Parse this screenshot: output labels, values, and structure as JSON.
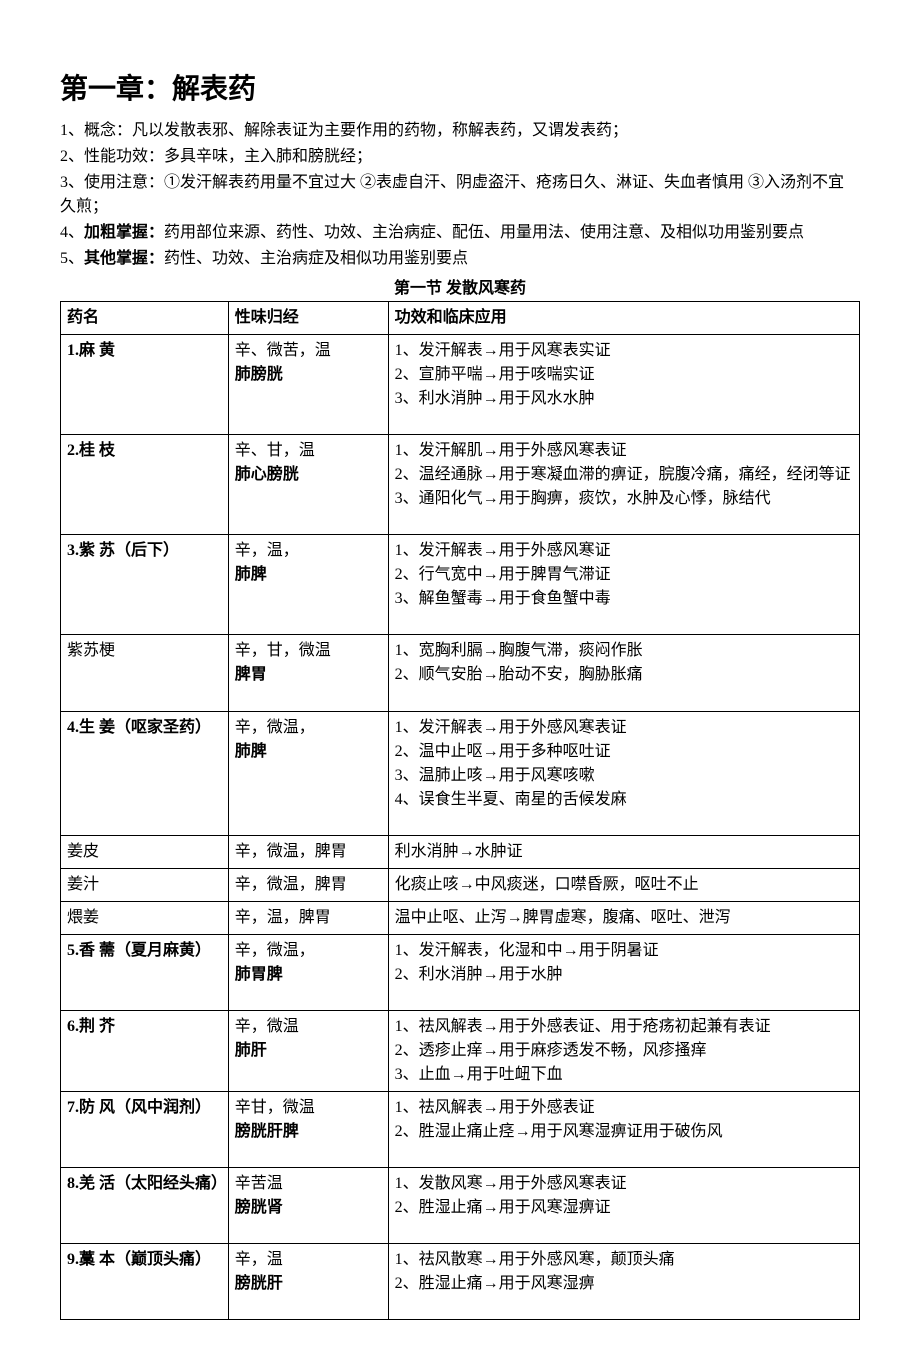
{
  "chapter_title": "第一章：解表药",
  "intro": [
    {
      "prefix": "1、概念：",
      "bold": "",
      "text": "凡以发散表邪、解除表证为主要作用的药物，称解表药，又谓发表药；"
    },
    {
      "prefix": "2、性能功效：",
      "bold": "",
      "text": "多具辛味，主入肺和膀胱经；"
    },
    {
      "prefix": "3、使用注意：",
      "bold": "",
      "text": "①发汗解表药用量不宜过大 ②表虚自汗、阴虚盗汗、疮疡日久、淋证、失血者慎用 ③入汤剂不宜久煎；"
    },
    {
      "prefix": "4、",
      "bold": "加粗掌握：",
      "text": "药用部位来源、药性、功效、主治病症、配伍、用量用法、使用注意、及相似功用鉴别要点"
    },
    {
      "prefix": "5、",
      "bold": "其他掌握：",
      "text": "药性、功效、主治病症及相似功用鉴别要点"
    }
  ],
  "section_title": "第一节  发散风寒药",
  "headers": {
    "col1": "药名",
    "col2": "性味归经",
    "col3": "功效和临床应用"
  },
  "rows": [
    {
      "name_bold": true,
      "name": "1.麻 黄",
      "taste_line1": "辛、微苦，温",
      "meridian": "肺膀胱",
      "effects": [
        "1、发汗解表→用于风寒表实证",
        "2、宣肺平喘→用于咳喘实证",
        "3、利水消肿→用于风水水肿"
      ],
      "trailing_space": true
    },
    {
      "name_bold": true,
      "name": "2.桂 枝",
      "taste_line1": "辛、甘，温",
      "meridian": "肺心膀胱",
      "effects": [
        "1、发汗解肌→用于外感风寒表证",
        "2、温经通脉→用于寒凝血滞的痹证，脘腹冷痛，痛经，经闭等证",
        "3、通阳化气→用于胸痹，痰饮，水肿及心悸，脉结代"
      ],
      "effect_indent": true,
      "trailing_space": true
    },
    {
      "name_bold": true,
      "name": "3.紫 苏（后下）",
      "taste_line1": "辛，温，",
      "meridian": "肺脾",
      "effects": [
        "1、发汗解表→用于外感风寒证",
        "2、行气宽中→用于脾胃气滞证",
        "3、解鱼蟹毒→用于食鱼蟹中毒"
      ],
      "trailing_space": true
    },
    {
      "name_bold": false,
      "name": "紫苏梗",
      "taste_line1": "辛，甘，微温",
      "meridian": "脾胃",
      "effects": [
        "1、宽胸利膈→胸腹气滞，痰闷作胀",
        "2、顺气安胎→胎动不安，胸胁胀痛"
      ],
      "trailing_space": true
    },
    {
      "name_bold": true,
      "name": "4.生 姜（呕家圣药）",
      "taste_line1": "辛，微温，",
      "meridian": "肺脾",
      "effects": [
        "1、发汗解表→用于外感风寒表证",
        "2、温中止呕→用于多种呕吐证",
        "3、温肺止咳→用于风寒咳嗽",
        "4、误食生半夏、南星的舌候发麻"
      ],
      "trailing_space": true
    },
    {
      "name_bold": false,
      "name": "姜皮",
      "taste_line1": "辛，微温，脾胃",
      "meridian": "",
      "effects": [
        "利水消肿→水肿证"
      ],
      "trailing_space": false
    },
    {
      "name_bold": false,
      "name": "姜汁",
      "taste_line1": "辛，微温，脾胃",
      "meridian": "",
      "effects": [
        "化痰止咳→中风痰迷，口噤昏厥，呕吐不止"
      ],
      "trailing_space": false
    },
    {
      "name_bold": false,
      "name": "煨姜",
      "taste_line1": "辛，温，脾胃",
      "meridian": "",
      "effects": [
        "温中止呕、止泻→脾胃虚寒，腹痛、呕吐、泄泻"
      ],
      "trailing_space": false
    },
    {
      "name_bold": true,
      "name": "5.香 薷（夏月麻黄）",
      "taste_line1": "辛，微温，",
      "meridian": "肺胃脾",
      "effects": [
        "1、发汗解表，化湿和中→用于阴暑证",
        "2、利水消肿→用于水肿"
      ],
      "trailing_space": true
    },
    {
      "name_bold": true,
      "name": "6.荆 芥",
      "taste_line1": "辛，微温",
      "meridian": "肺肝",
      "effects": [
        "1、祛风解表→用于外感表证、用于疮疡初起兼有表证",
        "2、透疹止痒→用于麻疹透发不畅，风疹搔痒",
        "3、止血→用于吐衄下血"
      ],
      "trailing_space": false
    },
    {
      "name_bold": true,
      "name": "7.防 风（风中润剂）",
      "taste_line1": "辛甘，微温",
      "meridian": "膀胱肝脾",
      "effects": [
        "1、祛风解表→用于外感表证",
        "2、胜湿止痛止痉→用于风寒湿痹证用于破伤风"
      ],
      "trailing_space": true
    },
    {
      "name_bold": true,
      "name": "8.羌 活（太阳经头痛）",
      "taste_line1": "辛苦温",
      "meridian": "膀胱肾",
      "effects": [
        "1、发散风寒→用于外感风寒表证",
        "2、胜湿止痛→用于风寒湿痹证"
      ],
      "trailing_space": true
    },
    {
      "name_bold": true,
      "name": "9.藁 本（巅顶头痛）",
      "taste_line1": "辛，温",
      "meridian": "膀胱肝",
      "effects": [
        "1、祛风散寒→用于外感风寒，颠顶头痛",
        "2、胜湿止痛→用于风寒湿痹"
      ],
      "trailing_space": true
    }
  ]
}
